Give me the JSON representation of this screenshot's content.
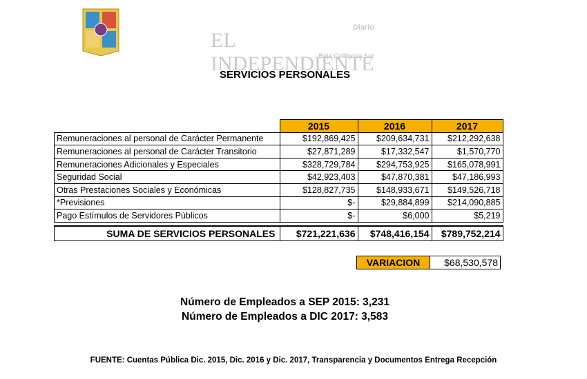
{
  "watermark": {
    "name": "EL INDEPENDIENTE",
    "tag": "Diario",
    "region": "Baja California Sur"
  },
  "title": "SERVICIOS PERSONALES",
  "table": {
    "columns": [
      "2015",
      "2016",
      "2017"
    ],
    "rows": [
      [
        "Remuneraciones al personal de Carácter Permanente",
        "$192,869,425",
        "$209,634,731",
        "$212,292,638"
      ],
      [
        "Remuneraciones al personal de Carácter Transitorio",
        "$27,871,289",
        "$17,332,547",
        "$1,570,770"
      ],
      [
        "Remuneraciones Adicionales y Especiales",
        "$328,729,784",
        "$294,753,925",
        "$165,078,991"
      ],
      [
        "Seguridad Social",
        "$42,923,403",
        "$47,870,381",
        "$47,186,993"
      ],
      [
        "Otras Prestaciones Sociales y Económicas",
        "$128,827,735",
        "$148,933,671",
        "$149,526,718"
      ],
      [
        "*Previsiones",
        "$-",
        "$29,884,899",
        "$214,090,885"
      ],
      [
        "Pago Estímulos de Servidores Públicos",
        "$-",
        "$6,000",
        "$5,219"
      ]
    ],
    "total": [
      "SUMA DE SERVICIOS PERSONALES",
      "$721,221,636",
      "$748,416,154",
      "$789,752,214"
    ]
  },
  "variation": {
    "label": "VARIACION",
    "value": "$68,530,578"
  },
  "employees": [
    "Número de Empleados a SEP 2015: 3,231",
    "Número de Empleados a DIC 2017: 3,583"
  ],
  "source": "FUENTE: Cuentas Pública Dic. 2015, Dic. 2016 y Dic. 2017, Transparencia y Documentos Entrega Recepción"
}
